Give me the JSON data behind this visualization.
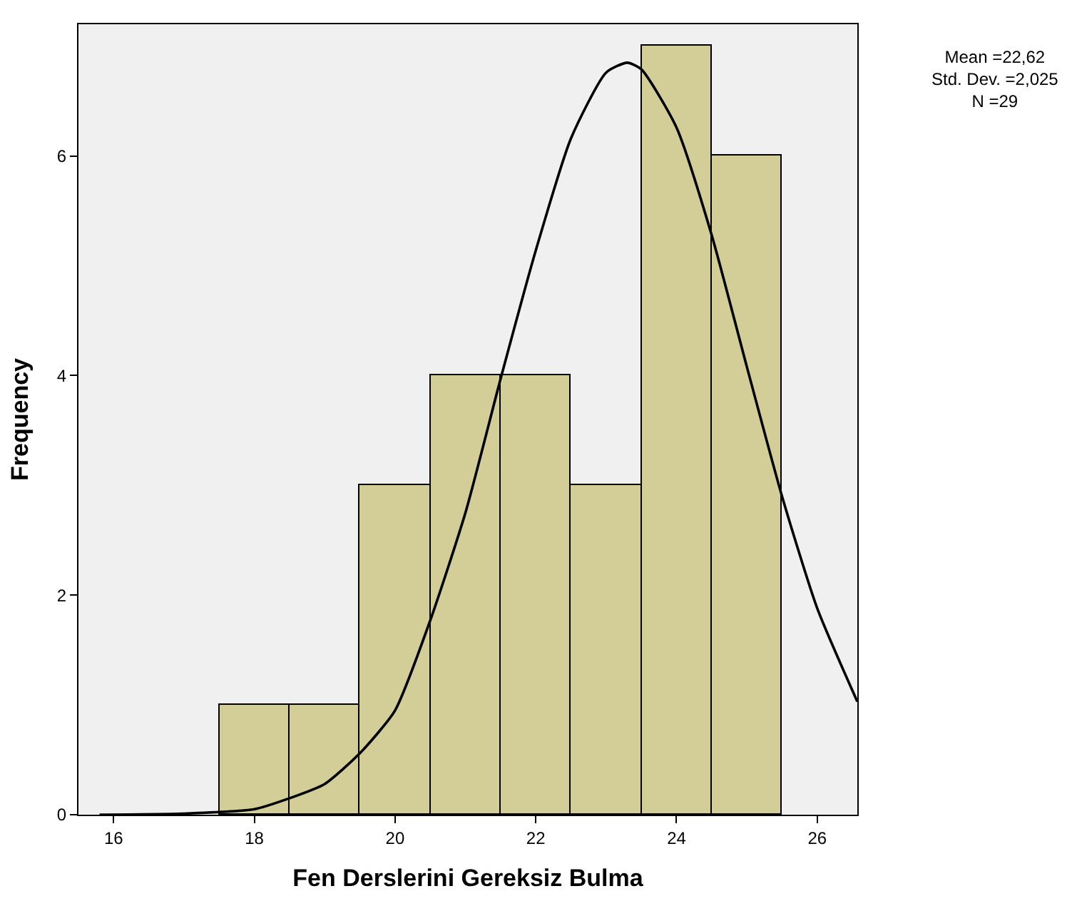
{
  "chart_data": {
    "type": "histogram",
    "xlabel": "Fen Derslerini Gereksiz Bulma",
    "ylabel": "Frequency",
    "bins": [
      17.5,
      18.5,
      19.5,
      20.5,
      21.5,
      22.5,
      23.5,
      24.5,
      25.5
    ],
    "values": [
      1,
      1,
      3,
      4,
      4,
      3,
      7,
      6
    ],
    "color": "#d3ce97",
    "series": [
      {
        "type": "line",
        "color": "#000000",
        "x": [
          15.8,
          17,
          18,
          18.5,
          19,
          19.5,
          20,
          20.5,
          21,
          21.5,
          22,
          22.5,
          23,
          23.3,
          23.5,
          24,
          24.5,
          25,
          25.5,
          26,
          26.57
        ],
        "values": [
          0,
          0.01,
          0.05,
          0.15,
          0.28,
          0.56,
          0.95,
          1.77,
          2.75,
          3.97,
          5.14,
          6.16,
          6.76,
          6.85,
          6.79,
          6.26,
          5.28,
          4.08,
          2.9,
          1.88,
          1.03
        ]
      }
    ],
    "xlim": [
      15.5,
      26.57
    ],
    "ylim": [
      0,
      7.2
    ],
    "xticks": [
      16,
      18,
      20,
      22,
      24,
      26
    ],
    "yticks": [
      0,
      2,
      4,
      6
    ],
    "grid": false,
    "annotations": [
      "Mean =22,62",
      "Std. Dev. =2,025",
      "N =29"
    ]
  }
}
